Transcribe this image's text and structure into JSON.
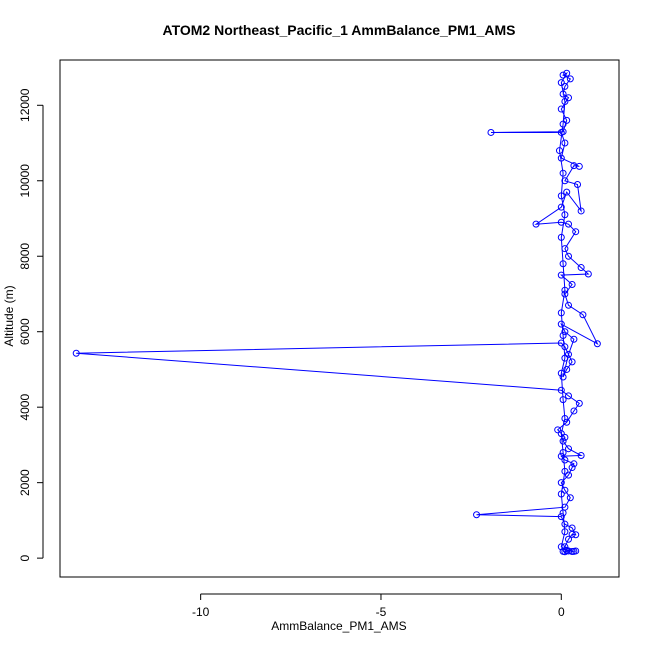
{
  "chart_data": {
    "type": "scatter",
    "title": "ATOM2 Northeast_Pacific_1 AmmBalance_PM1_AMS",
    "xlabel": "AmmBalance_PM1_AMS",
    "ylabel": "Altitude (m)",
    "xlim": [
      -13.9,
      1.6
    ],
    "ylim": [
      -500,
      13200
    ],
    "x_ticks": [
      -10,
      -5,
      0
    ],
    "y_ticks": [
      0,
      2000,
      4000,
      6000,
      8000,
      10000,
      12000
    ],
    "connected": true,
    "marker": "open-circle",
    "grid": false,
    "colors": {
      "series": "#0000ff",
      "frame": "#000000",
      "background": "#ffffff"
    },
    "series": [
      {
        "points": [
          [
            0.05,
            180
          ],
          [
            0.1,
            170
          ],
          [
            0.2,
            190
          ],
          [
            0.15,
            210
          ],
          [
            0.35,
            180
          ],
          [
            0.4,
            190
          ],
          [
            0.3,
            175
          ],
          [
            0.1,
            300
          ],
          [
            0.2,
            500
          ],
          [
            0.3,
            630
          ],
          [
            0.4,
            620
          ],
          [
            0.3,
            800
          ],
          [
            0.1,
            900
          ],
          [
            0.0,
            1100
          ],
          [
            -2.35,
            1150
          ],
          [
            0.1,
            1350
          ],
          [
            0.25,
            1600
          ],
          [
            0.1,
            1800
          ],
          [
            0.0,
            2000
          ],
          [
            0.2,
            2200
          ],
          [
            0.3,
            2400
          ],
          [
            0.35,
            2500
          ],
          [
            0.1,
            2600
          ],
          [
            0.0,
            2700
          ],
          [
            0.55,
            2720
          ],
          [
            0.2,
            2900
          ],
          [
            0.05,
            3100
          ],
          [
            0.1,
            3200
          ],
          [
            -0.1,
            3400
          ],
          [
            0.15,
            3600
          ],
          [
            0.35,
            3900
          ],
          [
            0.5,
            4100
          ],
          [
            0.2,
            4300
          ],
          [
            0.0,
            4450
          ],
          [
            -13.45,
            5430
          ],
          [
            0.0,
            5700
          ],
          [
            0.1,
            5600
          ],
          [
            0.3,
            5200
          ],
          [
            0.15,
            5000
          ],
          [
            0.05,
            4800
          ],
          [
            0.2,
            5400
          ],
          [
            0.35,
            5800
          ],
          [
            0.1,
            6000
          ],
          [
            0.0,
            6200
          ],
          [
            1.0,
            5680
          ],
          [
            0.6,
            6450
          ],
          [
            0.2,
            6700
          ],
          [
            0.1,
            7000
          ],
          [
            0.3,
            7250
          ],
          [
            0.0,
            7500
          ],
          [
            0.75,
            7530
          ],
          [
            0.55,
            7700
          ],
          [
            0.2,
            8000
          ],
          [
            0.1,
            8200
          ],
          [
            0.4,
            8650
          ],
          [
            0.2,
            8850
          ],
          [
            0.0,
            8900
          ],
          [
            -0.7,
            8850
          ],
          [
            0.0,
            9300
          ],
          [
            0.15,
            9700
          ],
          [
            0.55,
            9200
          ],
          [
            0.45,
            9900
          ],
          [
            0.1,
            10000
          ],
          [
            0.35,
            10400
          ],
          [
            0.5,
            10380
          ],
          [
            0.0,
            10600
          ],
          [
            0.1,
            11000
          ],
          [
            0.0,
            11280
          ],
          [
            -1.95,
            11280
          ],
          [
            0.05,
            11300
          ],
          [
            0.15,
            11600
          ],
          [
            0.0,
            11900
          ],
          [
            0.2,
            12200
          ],
          [
            0.05,
            12300
          ],
          [
            0.1,
            12500
          ],
          [
            0.25,
            12700
          ],
          [
            0.05,
            12800
          ],
          [
            0.15,
            12850
          ],
          [
            0.0,
            12600
          ],
          [
            0.1,
            12100
          ],
          [
            0.05,
            11500
          ],
          [
            -0.05,
            10800
          ],
          [
            0.05,
            10200
          ],
          [
            0.0,
            9600
          ],
          [
            0.1,
            9100
          ],
          [
            0.0,
            8500
          ],
          [
            0.05,
            7800
          ],
          [
            0.1,
            7100
          ],
          [
            0.0,
            6500
          ],
          [
            0.05,
            5900
          ],
          [
            0.1,
            5300
          ],
          [
            0.0,
            4900
          ],
          [
            0.05,
            4200
          ],
          [
            0.1,
            3700
          ],
          [
            0.0,
            3300
          ],
          [
            0.05,
            2800
          ],
          [
            0.1,
            2300
          ],
          [
            0.0,
            1700
          ],
          [
            0.05,
            1200
          ],
          [
            0.1,
            700
          ],
          [
            0.0,
            300
          ],
          [
            0.15,
            200
          ]
        ]
      }
    ]
  }
}
